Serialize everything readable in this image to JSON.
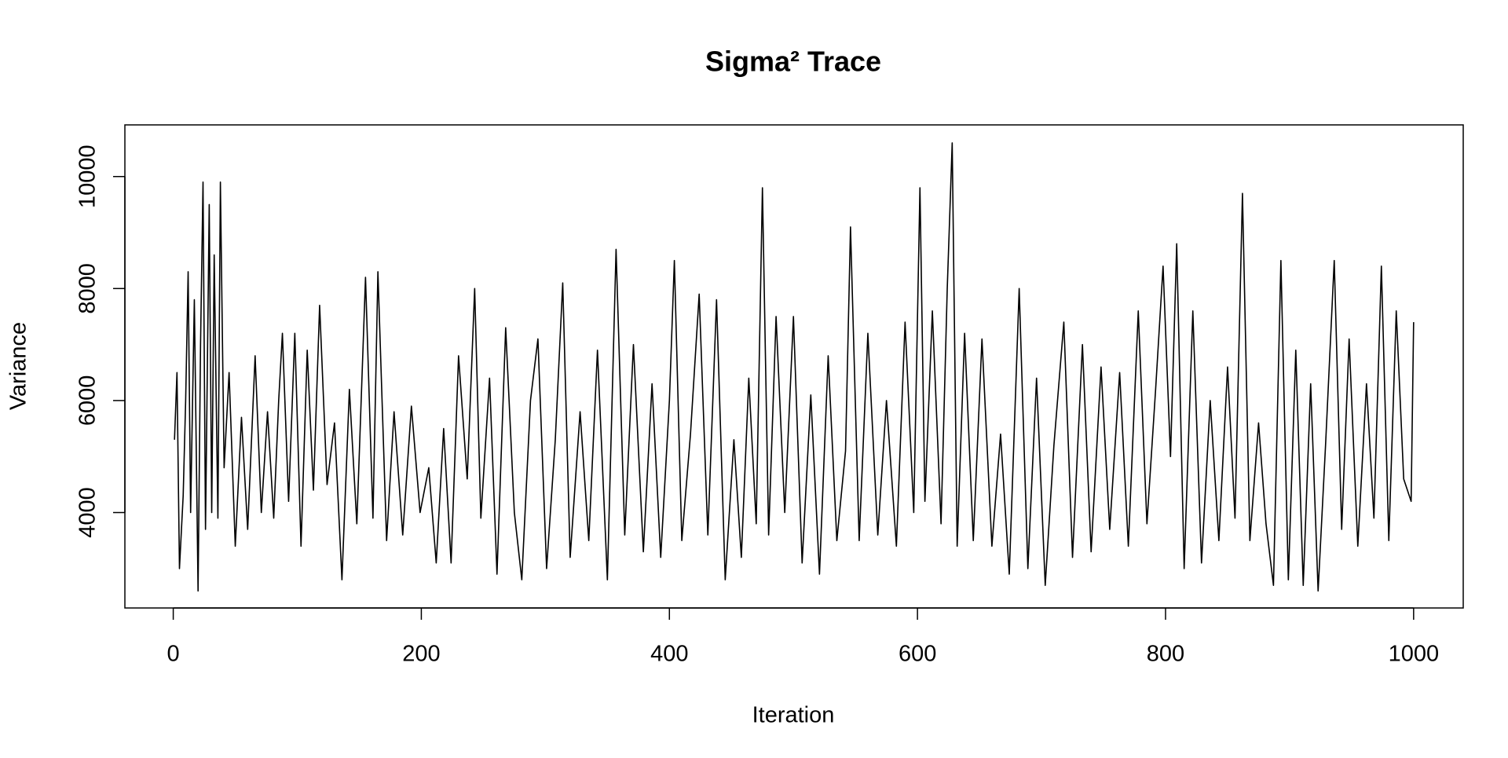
{
  "chart_data": {
    "type": "line",
    "title": "Sigma² Trace",
    "xlabel": "Iteration",
    "ylabel": "Variance",
    "color": "#000000",
    "x": [
      1,
      3,
      5,
      8,
      10,
      12,
      14,
      17,
      20,
      22,
      24,
      26,
      29,
      31,
      33,
      36,
      38,
      41,
      45,
      50,
      55,
      60,
      66,
      71,
      76,
      81,
      85,
      88,
      93,
      98,
      103,
      108,
      113,
      118,
      124,
      130,
      136,
      142,
      148,
      155,
      161,
      165,
      172,
      178,
      185,
      192,
      199,
      206,
      212,
      218,
      224,
      230,
      237,
      243,
      248,
      255,
      261,
      268,
      275,
      281,
      288,
      294,
      301,
      308,
      314,
      320,
      328,
      335,
      342,
      350,
      357,
      364,
      371,
      379,
      386,
      393,
      400,
      404,
      410,
      417,
      424,
      431,
      438,
      445,
      452,
      458,
      464,
      470,
      475,
      480,
      486,
      493,
      500,
      507,
      514,
      521,
      528,
      535,
      542,
      546,
      553,
      560,
      568,
      575,
      583,
      590,
      597,
      602,
      606,
      612,
      619,
      624,
      628,
      632,
      638,
      645,
      652,
      660,
      667,
      674,
      682,
      689,
      696,
      703,
      710,
      718,
      725,
      733,
      740,
      748,
      755,
      763,
      770,
      778,
      785,
      792,
      798,
      804,
      809,
      815,
      822,
      829,
      836,
      843,
      850,
      856,
      862,
      868,
      875,
      881,
      887,
      893,
      899,
      905,
      911,
      917,
      923,
      929,
      936,
      942,
      948,
      955,
      962,
      968,
      974,
      980,
      986,
      992,
      998,
      1000
    ],
    "values": [
      5300,
      6500,
      3000,
      4300,
      6000,
      8300,
      4000,
      7800,
      2600,
      7000,
      9900,
      3700,
      9500,
      4000,
      8600,
      3900,
      9900,
      4800,
      6500,
      3400,
      5700,
      3700,
      6800,
      4000,
      5800,
      3900,
      6000,
      7200,
      4200,
      7200,
      3400,
      6900,
      4400,
      7700,
      4500,
      5600,
      2800,
      6200,
      3800,
      8200,
      3900,
      8300,
      3500,
      5800,
      3600,
      5900,
      4000,
      4800,
      3100,
      5500,
      3100,
      6800,
      4600,
      8000,
      3900,
      6400,
      2900,
      7300,
      4000,
      2800,
      6000,
      7100,
      3000,
      5300,
      8100,
      3200,
      5800,
      3500,
      6900,
      2800,
      8700,
      3600,
      7000,
      3300,
      6300,
      3200,
      6000,
      8500,
      3500,
      5400,
      7900,
      3600,
      7800,
      2800,
      5300,
      3200,
      6400,
      3800,
      9800,
      3600,
      7500,
      4000,
      7500,
      3100,
      6100,
      2900,
      6800,
      3500,
      5100,
      9100,
      3500,
      7200,
      3600,
      6000,
      3400,
      7400,
      4000,
      9800,
      4200,
      7600,
      3800,
      8000,
      10600,
      3400,
      7200,
      3500,
      7100,
      3400,
      5400,
      2900,
      8000,
      3000,
      6400,
      2700,
      5200,
      7400,
      3200,
      7000,
      3300,
      6600,
      3700,
      6500,
      3400,
      7600,
      3800,
      6200,
      8400,
      5000,
      8800,
      3000,
      7600,
      3100,
      6000,
      3500,
      6600,
      3900,
      9700,
      3500,
      5600,
      3800,
      2700,
      8500,
      2800,
      6900,
      2700,
      6300,
      2600,
      5200,
      8500,
      3700,
      7100,
      3400,
      6300,
      3900,
      8400,
      3500,
      7600,
      4600,
      4200,
      7400
    ],
    "xlim": [
      -39,
      1040
    ],
    "ylim": [
      2296,
      10922
    ],
    "xticks": [
      0,
      200,
      400,
      600,
      800,
      1000
    ],
    "yticks": [
      4000,
      6000,
      8000,
      10000
    ]
  }
}
